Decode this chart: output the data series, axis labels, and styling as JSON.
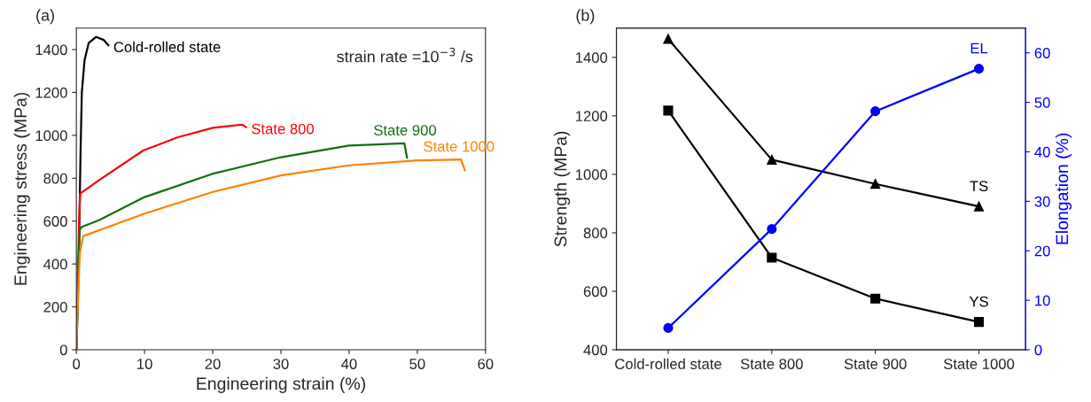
{
  "chart_data": [
    {
      "type": "line",
      "title": "(a)",
      "xlabel": "Engineering strain (%)",
      "ylabel": "Engineering stress (MPa)",
      "xlim": [
        0,
        60
      ],
      "ylim": [
        0,
        1500
      ],
      "xticks": [
        0,
        10,
        20,
        30,
        40,
        50,
        60
      ],
      "yticks": [
        0,
        200,
        400,
        600,
        800,
        1000,
        1200,
        1400
      ],
      "grid": false,
      "legend": false,
      "marker": "none",
      "line_style": "solid",
      "annotations": [
        "strain rate =10$^{−3}$ /s"
      ],
      "series": [
        {
          "name": "Cold-rolled state",
          "color": "#000000",
          "x": [
            0,
            0.2,
            0.4,
            0.6,
            0.8,
            1.2,
            1.8,
            2.9,
            4,
            4.7
          ],
          "values": [
            0,
            200,
            500,
            900,
            1200,
            1350,
            1430,
            1459,
            1445,
            1420
          ]
        },
        {
          "name": "State 800",
          "color": "#ff0000",
          "x": [
            0,
            0.2,
            0.4,
            0.46,
            0.55,
            3.3,
            9.8,
            14.9,
            20,
            24.3,
            24.9
          ],
          "values": [
            0,
            300,
            600,
            650,
            728,
            790,
            929,
            991,
            1035,
            1050,
            1038
          ]
        },
        {
          "name": "State 900",
          "color": "#107010",
          "x": [
            0,
            0.3,
            0.5,
            0.8,
            3.3,
            10,
            20,
            30,
            40,
            48.1,
            48.5
          ],
          "values": [
            0,
            400,
            560,
            573,
            604,
            712,
            821,
            898,
            952,
            963,
            895
          ]
        },
        {
          "name": "State 1000",
          "color": "#ff8000",
          "x": [
            0,
            0.2,
            0.5,
            1,
            10,
            20,
            30,
            40,
            50,
            56.4,
            57
          ],
          "values": [
            0,
            200,
            450,
            530,
            635,
            736,
            813,
            860,
            883,
            887,
            836
          ]
        }
      ]
    },
    {
      "type": "line",
      "title": "(b)",
      "ylabel": "Strength (MPa)",
      "y2label": "Elongation (%)",
      "categories": [
        "Cold-rolled state",
        "State 800",
        "State 900",
        "State 1000"
      ],
      "ylim": [
        400,
        1500
      ],
      "yticks": [
        400,
        600,
        800,
        1000,
        1200,
        1400
      ],
      "y2lim": [
        0,
        65
      ],
      "y2ticks": [
        0,
        10,
        20,
        30,
        40,
        50,
        60
      ],
      "grid": false,
      "legend": false,
      "line_style": "solid",
      "series": [
        {
          "name": "TS",
          "color": "#000000",
          "marker": "triangle",
          "values": [
            1463,
            1050,
            967,
            890
          ]
        },
        {
          "name": "YS",
          "color": "#000000",
          "marker": "square",
          "values": [
            1218,
            715,
            575,
            495
          ]
        },
        {
          "name": "EL",
          "color": "#0000ff",
          "marker": "circle",
          "axis": "y2",
          "values": [
            4.4,
            24.4,
            48.2,
            56.8
          ]
        }
      ]
    }
  ]
}
